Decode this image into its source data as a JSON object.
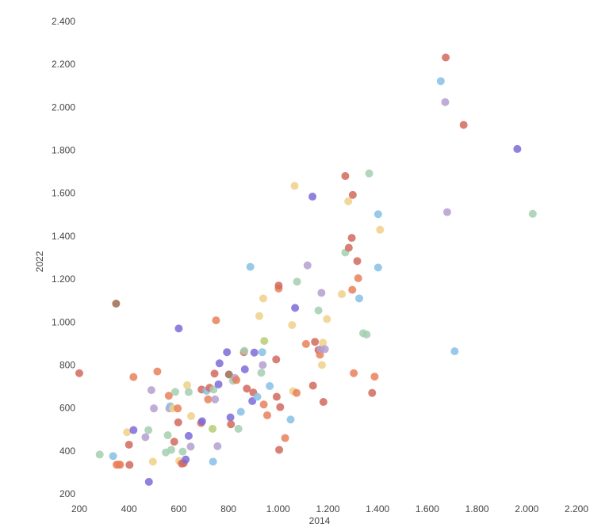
{
  "chart_data": {
    "type": "scatter",
    "title": "",
    "xlabel": "2014",
    "ylabel": "2022",
    "xlim": [
      200,
      2200
    ],
    "ylim": [
      200,
      2400
    ],
    "x_ticks": [
      "200",
      "400",
      "600",
      "800",
      "1.000",
      "1.200",
      "1.400",
      "1.600",
      "1.800",
      "2.000",
      "2.200"
    ],
    "y_ticks": [
      "2.400",
      "2.200",
      "2.000",
      "1.800",
      "1.600",
      "1.400",
      "1.200",
      "1.000",
      "800",
      "600",
      "400",
      "200"
    ],
    "grid": false,
    "legend": "none",
    "colors": {
      "red": "#d26a5e",
      "orange": "#e8805a",
      "blue": "#87c0e4",
      "purple": "#7e6bd9",
      "lavender": "#b59fd0",
      "green": "#a3cfb0",
      "yellow": "#f0d08a",
      "olive": "#b7cc75",
      "brown": "#9c6b4f"
    },
    "points": [
      {
        "x": 200,
        "y": 762,
        "c": "red"
      },
      {
        "x": 282,
        "y": 383,
        "c": "green"
      },
      {
        "x": 336,
        "y": 376,
        "c": "blue"
      },
      {
        "x": 348,
        "y": 1086,
        "c": "brown"
      },
      {
        "x": 350,
        "y": 336,
        "c": "orange"
      },
      {
        "x": 358,
        "y": 336,
        "c": "orange"
      },
      {
        "x": 364,
        "y": 336,
        "c": "orange"
      },
      {
        "x": 392,
        "y": 487,
        "c": "yellow"
      },
      {
        "x": 400,
        "y": 429,
        "c": "red"
      },
      {
        "x": 402,
        "y": 335,
        "c": "red"
      },
      {
        "x": 418,
        "y": 744,
        "c": "orange"
      },
      {
        "x": 418,
        "y": 497,
        "c": "purple"
      },
      {
        "x": 466,
        "y": 464,
        "c": "lavender"
      },
      {
        "x": 478,
        "y": 497,
        "c": "green"
      },
      {
        "x": 480,
        "y": 256,
        "c": "purple"
      },
      {
        "x": 490,
        "y": 683,
        "c": "lavender"
      },
      {
        "x": 496,
        "y": 350,
        "c": "yellow"
      },
      {
        "x": 500,
        "y": 598,
        "c": "lavender"
      },
      {
        "x": 514,
        "y": 770,
        "c": "orange"
      },
      {
        "x": 548,
        "y": 393,
        "c": "green"
      },
      {
        "x": 556,
        "y": 473,
        "c": "green"
      },
      {
        "x": 560,
        "y": 657,
        "c": "orange"
      },
      {
        "x": 562,
        "y": 598,
        "c": "lavender"
      },
      {
        "x": 566,
        "y": 608,
        "c": "blue"
      },
      {
        "x": 570,
        "y": 405,
        "c": "green"
      },
      {
        "x": 576,
        "y": 598,
        "c": "yellow"
      },
      {
        "x": 582,
        "y": 443,
        "c": "red"
      },
      {
        "x": 586,
        "y": 675,
        "c": "green"
      },
      {
        "x": 596,
        "y": 598,
        "c": "orange"
      },
      {
        "x": 598,
        "y": 533,
        "c": "red"
      },
      {
        "x": 600,
        "y": 970,
        "c": "purple"
      },
      {
        "x": 602,
        "y": 353,
        "c": "yellow"
      },
      {
        "x": 612,
        "y": 341,
        "c": "red"
      },
      {
        "x": 616,
        "y": 397,
        "c": "green"
      },
      {
        "x": 620,
        "y": 343,
        "c": "red"
      },
      {
        "x": 628,
        "y": 360,
        "c": "purple"
      },
      {
        "x": 634,
        "y": 706,
        "c": "yellow"
      },
      {
        "x": 640,
        "y": 674,
        "c": "green"
      },
      {
        "x": 640,
        "y": 470,
        "c": "purple"
      },
      {
        "x": 648,
        "y": 420,
        "c": "lavender"
      },
      {
        "x": 650,
        "y": 562,
        "c": "yellow"
      },
      {
        "x": 690,
        "y": 530,
        "c": "red"
      },
      {
        "x": 692,
        "y": 686,
        "c": "red"
      },
      {
        "x": 694,
        "y": 538,
        "c": "purple"
      },
      {
        "x": 712,
        "y": 680,
        "c": "blue"
      },
      {
        "x": 718,
        "y": 640,
        "c": "orange"
      },
      {
        "x": 724,
        "y": 694,
        "c": "red"
      },
      {
        "x": 736,
        "y": 503,
        "c": "olive"
      },
      {
        "x": 738,
        "y": 350,
        "c": "blue"
      },
      {
        "x": 740,
        "y": 686,
        "c": "green"
      },
      {
        "x": 744,
        "y": 760,
        "c": "red"
      },
      {
        "x": 746,
        "y": 640,
        "c": "lavender"
      },
      {
        "x": 750,
        "y": 1008,
        "c": "orange"
      },
      {
        "x": 756,
        "y": 422,
        "c": "lavender"
      },
      {
        "x": 760,
        "y": 710,
        "c": "purple"
      },
      {
        "x": 764,
        "y": 808,
        "c": "purple"
      },
      {
        "x": 794,
        "y": 860,
        "c": "purple"
      },
      {
        "x": 802,
        "y": 756,
        "c": "brown"
      },
      {
        "x": 808,
        "y": 556,
        "c": "purple"
      },
      {
        "x": 810,
        "y": 524,
        "c": "red"
      },
      {
        "x": 818,
        "y": 727,
        "c": "green"
      },
      {
        "x": 826,
        "y": 740,
        "c": "lavender"
      },
      {
        "x": 832,
        "y": 730,
        "c": "orange"
      },
      {
        "x": 840,
        "y": 503,
        "c": "green"
      },
      {
        "x": 850,
        "y": 582,
        "c": "blue"
      },
      {
        "x": 862,
        "y": 860,
        "c": "red"
      },
      {
        "x": 864,
        "y": 866,
        "c": "green"
      },
      {
        "x": 866,
        "y": 780,
        "c": "purple"
      },
      {
        "x": 874,
        "y": 690,
        "c": "red"
      },
      {
        "x": 888,
        "y": 1257,
        "c": "blue"
      },
      {
        "x": 896,
        "y": 632,
        "c": "purple"
      },
      {
        "x": 900,
        "y": 672,
        "c": "red"
      },
      {
        "x": 904,
        "y": 858,
        "c": "purple"
      },
      {
        "x": 916,
        "y": 652,
        "c": "blue"
      },
      {
        "x": 924,
        "y": 1028,
        "c": "yellow"
      },
      {
        "x": 932,
        "y": 764,
        "c": "green"
      },
      {
        "x": 936,
        "y": 860,
        "c": "blue"
      },
      {
        "x": 938,
        "y": 800,
        "c": "lavender"
      },
      {
        "x": 940,
        "y": 1110,
        "c": "yellow"
      },
      {
        "x": 942,
        "y": 616,
        "c": "orange"
      },
      {
        "x": 944,
        "y": 912,
        "c": "olive"
      },
      {
        "x": 956,
        "y": 566,
        "c": "orange"
      },
      {
        "x": 966,
        "y": 702,
        "c": "blue"
      },
      {
        "x": 992,
        "y": 826,
        "c": "red"
      },
      {
        "x": 994,
        "y": 652,
        "c": "red"
      },
      {
        "x": 1002,
        "y": 1156,
        "c": "orange"
      },
      {
        "x": 1002,
        "y": 1170,
        "c": "red"
      },
      {
        "x": 1004,
        "y": 405,
        "c": "red"
      },
      {
        "x": 1008,
        "y": 604,
        "c": "red"
      },
      {
        "x": 1028,
        "y": 460,
        "c": "orange"
      },
      {
        "x": 1050,
        "y": 546,
        "c": "blue"
      },
      {
        "x": 1056,
        "y": 986,
        "c": "yellow"
      },
      {
        "x": 1060,
        "y": 678,
        "c": "yellow"
      },
      {
        "x": 1066,
        "y": 1634,
        "c": "yellow"
      },
      {
        "x": 1068,
        "y": 1066,
        "c": "purple"
      },
      {
        "x": 1074,
        "y": 670,
        "c": "orange"
      },
      {
        "x": 1076,
        "y": 1188,
        "c": "green"
      },
      {
        "x": 1112,
        "y": 898,
        "c": "orange"
      },
      {
        "x": 1118,
        "y": 1264,
        "c": "lavender"
      },
      {
        "x": 1138,
        "y": 1584,
        "c": "purple"
      },
      {
        "x": 1140,
        "y": 704,
        "c": "red"
      },
      {
        "x": 1148,
        "y": 908,
        "c": "red"
      },
      {
        "x": 1162,
        "y": 1054,
        "c": "green"
      },
      {
        "x": 1162,
        "y": 870,
        "c": "red"
      },
      {
        "x": 1168,
        "y": 848,
        "c": "orange"
      },
      {
        "x": 1172,
        "y": 874,
        "c": "lavender"
      },
      {
        "x": 1174,
        "y": 1136,
        "c": "lavender"
      },
      {
        "x": 1176,
        "y": 800,
        "c": "yellow"
      },
      {
        "x": 1180,
        "y": 904,
        "c": "yellow"
      },
      {
        "x": 1182,
        "y": 628,
        "c": "red"
      },
      {
        "x": 1188,
        "y": 874,
        "c": "lavender"
      },
      {
        "x": 1196,
        "y": 1014,
        "c": "yellow"
      },
      {
        "x": 1256,
        "y": 1130,
        "c": "yellow"
      },
      {
        "x": 1270,
        "y": 1680,
        "c": "red"
      },
      {
        "x": 1270,
        "y": 1324,
        "c": "green"
      },
      {
        "x": 1282,
        "y": 1562,
        "c": "yellow"
      },
      {
        "x": 1284,
        "y": 1346,
        "c": "red"
      },
      {
        "x": 1296,
        "y": 1392,
        "c": "red"
      },
      {
        "x": 1298,
        "y": 1150,
        "c": "orange"
      },
      {
        "x": 1300,
        "y": 1592,
        "c": "red"
      },
      {
        "x": 1304,
        "y": 762,
        "c": "orange"
      },
      {
        "x": 1318,
        "y": 1284,
        "c": "red"
      },
      {
        "x": 1322,
        "y": 1204,
        "c": "orange"
      },
      {
        "x": 1326,
        "y": 1110,
        "c": "blue"
      },
      {
        "x": 1342,
        "y": 948,
        "c": "green"
      },
      {
        "x": 1356,
        "y": 942,
        "c": "green"
      },
      {
        "x": 1366,
        "y": 1692,
        "c": "green"
      },
      {
        "x": 1378,
        "y": 670,
        "c": "red"
      },
      {
        "x": 1388,
        "y": 746,
        "c": "orange"
      },
      {
        "x": 1402,
        "y": 1502,
        "c": "blue"
      },
      {
        "x": 1402,
        "y": 1254,
        "c": "blue"
      },
      {
        "x": 1410,
        "y": 1430,
        "c": "yellow"
      },
      {
        "x": 1654,
        "y": 2122,
        "c": "blue"
      },
      {
        "x": 1672,
        "y": 2024,
        "c": "lavender"
      },
      {
        "x": 1674,
        "y": 2232,
        "c": "red"
      },
      {
        "x": 1680,
        "y": 1512,
        "c": "lavender"
      },
      {
        "x": 1710,
        "y": 864,
        "c": "blue"
      },
      {
        "x": 1746,
        "y": 1918,
        "c": "red"
      },
      {
        "x": 1962,
        "y": 1806,
        "c": "purple"
      },
      {
        "x": 2024,
        "y": 1504,
        "c": "green"
      }
    ]
  }
}
